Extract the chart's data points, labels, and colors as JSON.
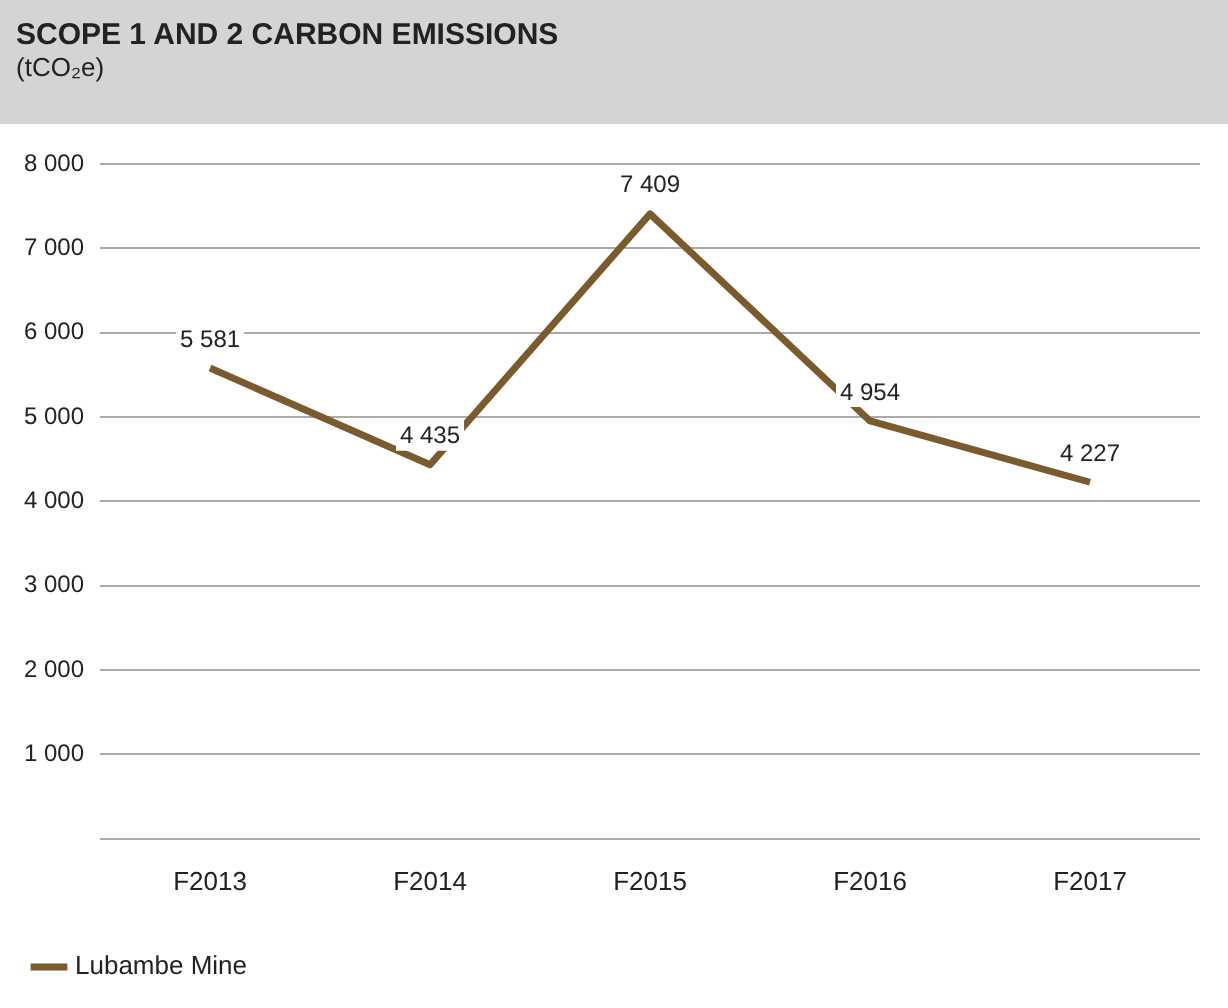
{
  "chart_data": {
    "type": "line",
    "title": "SCOPE 1 AND 2 CARBON EMISSIONS",
    "subtitle": "(tCO₂e)",
    "categories": [
      "F2013",
      "F2014",
      "F2015",
      "F2016",
      "F2017"
    ],
    "series": [
      {
        "name": "Lubambe Mine",
        "color": "#7b5a2e",
        "values": [
          5581,
          4435,
          7409,
          4954,
          4227
        ],
        "value_labels": [
          "5 581",
          "4 435",
          "7 409",
          "4 954",
          "4 227"
        ]
      }
    ],
    "ylim": [
      0,
      8000
    ],
    "yticks": [
      {
        "value": 0,
        "label": null
      },
      {
        "value": 1000,
        "label": "1 000"
      },
      {
        "value": 2000,
        "label": "2 000"
      },
      {
        "value": 3000,
        "label": "3 000"
      },
      {
        "value": 4000,
        "label": "4 000"
      },
      {
        "value": 5000,
        "label": "5 000"
      },
      {
        "value": 6000,
        "label": "6 000"
      },
      {
        "value": 7000,
        "label": "7 000"
      },
      {
        "value": 8000,
        "label": "8 000"
      }
    ],
    "grid": "y",
    "legend": "bottom left",
    "marker": "none",
    "line_style": "solid"
  }
}
